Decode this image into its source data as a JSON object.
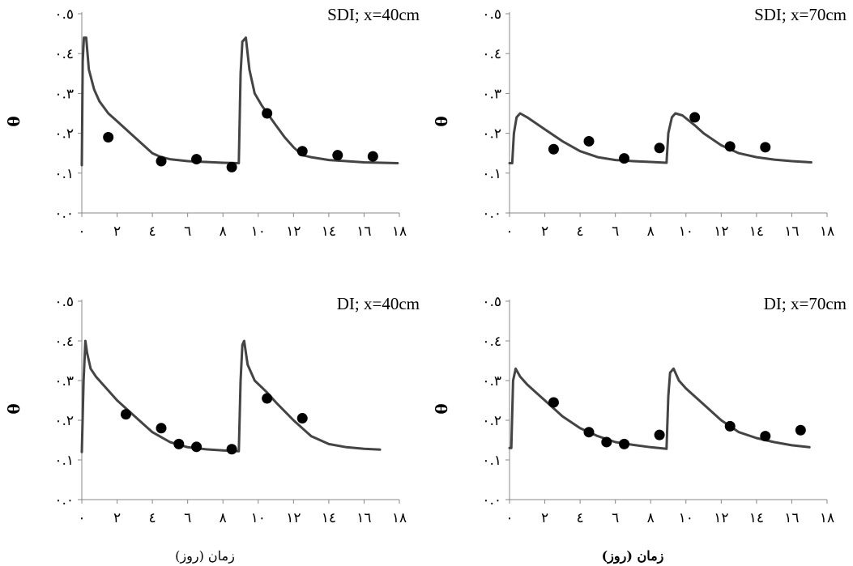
{
  "figure": {
    "xlabels": [
      "زمان (روز)",
      "زمان (روز)"
    ]
  },
  "chart_data": [
    {
      "type": "line",
      "title": "SDI; x=40cm",
      "ylabel": "θ",
      "xlabel": "",
      "xlim": [
        0,
        18
      ],
      "ylim": [
        0,
        0.5
      ],
      "xticks": [
        0,
        2,
        4,
        6,
        8,
        10,
        12,
        14,
        16,
        18
      ],
      "xtick_labels": [
        "۰",
        "۲",
        "٤",
        "٦",
        "۸",
        "۱۰",
        "۱۲",
        "١٤",
        "١٦",
        "۱۸"
      ],
      "yticks": [
        0,
        0.1,
        0.2,
        0.3,
        0.4,
        0.5
      ],
      "ytick_labels": [
        "۰.۰",
        "۰.۱",
        "۰.۲",
        "۰.۳",
        "۰.٤",
        "۰.٥"
      ],
      "series": [
        {
          "kind": "line",
          "x": [
            0,
            0.05,
            0.12,
            0.25,
            0.4,
            0.7,
            1,
            1.5,
            2,
            3,
            4,
            4.5,
            5,
            6,
            7,
            8,
            8.9,
            9.0,
            9.1,
            9.3,
            9.5,
            9.8,
            10.2,
            10.6,
            11,
            11.5,
            12,
            12.5,
            13,
            14,
            15,
            16,
            17,
            17.9
          ],
          "y": [
            0.12,
            0.38,
            0.44,
            0.44,
            0.36,
            0.31,
            0.28,
            0.25,
            0.23,
            0.19,
            0.15,
            0.14,
            0.135,
            0.13,
            0.128,
            0.126,
            0.125,
            0.35,
            0.43,
            0.44,
            0.36,
            0.3,
            0.27,
            0.245,
            0.22,
            0.19,
            0.165,
            0.145,
            0.14,
            0.133,
            0.13,
            0.127,
            0.126,
            0.125
          ]
        },
        {
          "kind": "scatter",
          "x": [
            1.5,
            4.5,
            6.5,
            8.5,
            10.5,
            12.5,
            14.5,
            16.5
          ],
          "y": [
            0.19,
            0.13,
            0.135,
            0.115,
            0.25,
            0.155,
            0.145,
            0.142
          ]
        }
      ]
    },
    {
      "type": "line",
      "title": "SDI; x=70cm",
      "ylabel": "θ",
      "xlabel": "",
      "xlim": [
        0,
        18
      ],
      "ylim": [
        0,
        0.5
      ],
      "xticks": [
        0,
        2,
        4,
        6,
        8,
        10,
        12,
        14,
        16,
        18
      ],
      "xtick_labels": [
        "۰",
        "۲",
        "٤",
        "٦",
        "۸",
        "۱۰",
        "۱۲",
        "١٤",
        "١٦",
        "۱۸"
      ],
      "yticks": [
        0,
        0.1,
        0.2,
        0.3,
        0.4,
        0.5
      ],
      "ytick_labels": [
        "۰.۰",
        "۰.۱",
        "۰.۲",
        "۰.۳",
        "۰.٤",
        "۰.٥"
      ],
      "series": [
        {
          "kind": "line",
          "x": [
            0,
            0.15,
            0.25,
            0.4,
            0.6,
            1,
            2,
            3,
            4,
            5,
            6,
            7,
            8,
            8.9,
            9.0,
            9.2,
            9.4,
            9.8,
            10.5,
            11,
            12,
            13,
            14,
            15,
            16,
            17.1
          ],
          "y": [
            0.125,
            0.125,
            0.2,
            0.24,
            0.25,
            0.24,
            0.21,
            0.18,
            0.155,
            0.14,
            0.133,
            0.13,
            0.128,
            0.126,
            0.2,
            0.24,
            0.25,
            0.245,
            0.22,
            0.2,
            0.17,
            0.15,
            0.14,
            0.134,
            0.13,
            0.127
          ]
        },
        {
          "kind": "scatter",
          "x": [
            2.5,
            4.5,
            6.5,
            8.5,
            10.5,
            12.5,
            14.5
          ],
          "y": [
            0.16,
            0.18,
            0.137,
            0.163,
            0.24,
            0.167,
            0.165
          ]
        }
      ]
    },
    {
      "type": "line",
      "title": "DI; x=40cm",
      "ylabel": "θ",
      "xlabel": "",
      "xlim": [
        0,
        18
      ],
      "ylim": [
        0,
        0.5
      ],
      "xticks": [
        0,
        2,
        4,
        6,
        8,
        10,
        12,
        14,
        16,
        18
      ],
      "xtick_labels": [
        "۰",
        "۲",
        "٤",
        "٦",
        "۸",
        "۱۰",
        "۱۲",
        "١٤",
        "١٦",
        "۱۸"
      ],
      "yticks": [
        0,
        0.1,
        0.2,
        0.3,
        0.4,
        0.5
      ],
      "ytick_labels": [
        "۰.۰",
        "۰.۱",
        "۰.۲",
        "۰.۳",
        "۰.٤",
        "۰.٥"
      ],
      "series": [
        {
          "kind": "line",
          "x": [
            0,
            0.1,
            0.2,
            0.3,
            0.5,
            0.8,
            1.2,
            2,
            3,
            4,
            5,
            6,
            7,
            8,
            8.9,
            9.0,
            9.1,
            9.2,
            9.4,
            9.8,
            10.5,
            11,
            12,
            13,
            14,
            15,
            16,
            16.9
          ],
          "y": [
            0.12,
            0.3,
            0.4,
            0.37,
            0.33,
            0.31,
            0.29,
            0.25,
            0.21,
            0.17,
            0.145,
            0.132,
            0.127,
            0.124,
            0.122,
            0.3,
            0.39,
            0.4,
            0.34,
            0.3,
            0.27,
            0.245,
            0.2,
            0.16,
            0.14,
            0.132,
            0.128,
            0.126
          ]
        },
        {
          "kind": "scatter",
          "x": [
            2.5,
            4.5,
            5.5,
            6.5,
            8.5,
            10.5,
            12.5
          ],
          "y": [
            0.215,
            0.18,
            0.14,
            0.133,
            0.127,
            0.255,
            0.205
          ]
        }
      ]
    },
    {
      "type": "line",
      "title": "DI; x=70cm",
      "ylabel": "θ",
      "xlabel": "",
      "xlim": [
        0,
        18
      ],
      "ylim": [
        0,
        0.5
      ],
      "xticks": [
        0,
        2,
        4,
        6,
        8,
        10,
        12,
        14,
        16,
        18
      ],
      "xtick_labels": [
        "۰",
        "۲",
        "٤",
        "٦",
        "۸",
        "۱۰",
        "۱۲",
        "١٤",
        "١٦",
        "۱۸"
      ],
      "yticks": [
        0,
        0.1,
        0.2,
        0.3,
        0.4,
        0.5
      ],
      "ytick_labels": [
        "۰.۰",
        "۰.۱",
        "۰.۲",
        "۰.۳",
        "۰.٤",
        "۰.٥"
      ],
      "series": [
        {
          "kind": "line",
          "x": [
            0,
            0.1,
            0.2,
            0.35,
            0.6,
            1,
            1.5,
            2,
            3,
            4,
            5,
            6,
            7,
            8,
            8.9,
            9.0,
            9.1,
            9.3,
            9.6,
            10,
            11,
            12,
            13,
            14,
            15,
            16,
            17
          ],
          "y": [
            0.13,
            0.13,
            0.3,
            0.33,
            0.31,
            0.29,
            0.27,
            0.25,
            0.21,
            0.18,
            0.16,
            0.145,
            0.138,
            0.132,
            0.128,
            0.26,
            0.32,
            0.33,
            0.3,
            0.28,
            0.24,
            0.2,
            0.17,
            0.155,
            0.145,
            0.137,
            0.132
          ]
        },
        {
          "kind": "scatter",
          "x": [
            2.5,
            4.5,
            5.5,
            6.5,
            8.5,
            12.5,
            14.5,
            16.5
          ],
          "y": [
            0.245,
            0.17,
            0.145,
            0.14,
            0.163,
            0.185,
            0.16,
            0.175
          ]
        }
      ]
    }
  ]
}
